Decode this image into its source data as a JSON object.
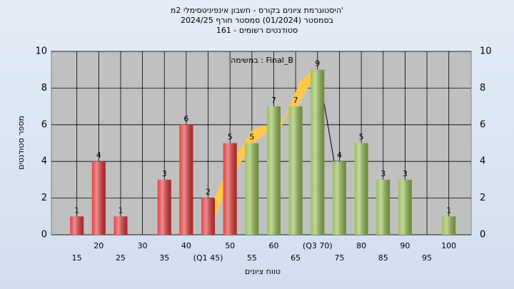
{
  "chart_data": {
    "type": "bar",
    "title": [
      "היסטוגרמת ציונים בקורס - חשבון אינפיניטסימלי 2מ'",
      "בסמסטר  (01/2024)  סמסטר חורף 2024/25",
      "סטודנטים רשומים - 161"
    ],
    "annotation": "במשימה : Final_B",
    "xlabel": "טווח ציונים",
    "ylabel": "מספר סטודנטים",
    "categories": [
      "15",
      "20",
      "25",
      "30",
      "35",
      "40",
      "(Q1 45)",
      "50",
      "55",
      "60",
      "65",
      "(Q3 70)",
      "75",
      "80",
      "85",
      "90",
      "95",
      "100"
    ],
    "values": [
      1,
      4,
      1,
      0,
      3,
      6,
      2,
      5,
      5,
      7,
      7,
      9,
      4,
      5,
      3,
      3,
      0,
      1
    ],
    "colors": [
      "#e03030",
      "#e03030",
      "#e03030",
      "#e03030",
      "#e03030",
      "#e03030",
      "#e03030",
      "#e03030",
      "#8fb84a",
      "#8fb84a",
      "#8fb84a",
      "#8fb84a",
      "#8fb84a",
      "#8fb84a",
      "#8fb84a",
      "#8fb84a",
      "#8fb84a",
      "#8fb84a"
    ],
    "ylim": [
      0,
      10
    ],
    "yticks": [
      0,
      2,
      4,
      6,
      8,
      10
    ],
    "grid": true
  }
}
